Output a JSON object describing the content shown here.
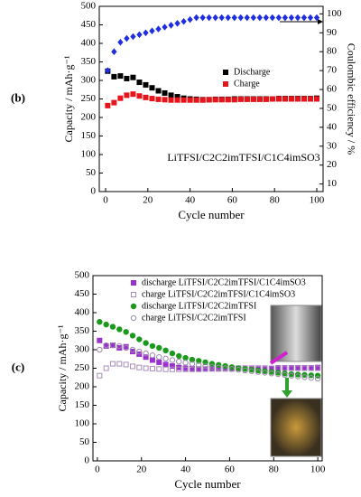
{
  "chart_data": [
    {
      "type": "scatter",
      "panel": "(b)",
      "annotation": "LiTFSI/C2C2imTFSI/C1C4imSO3",
      "x_label": "Cycle number",
      "y_label": "Capacity / mAh·g⁻¹",
      "y2_label": "Coulombic efficiency / %",
      "x": [
        1,
        4,
        7,
        10,
        13,
        16,
        19,
        22,
        25,
        28,
        31,
        34,
        37,
        40,
        43,
        46,
        49,
        52,
        55,
        58,
        61,
        64,
        67,
        70,
        73,
        76,
        79,
        82,
        85,
        88,
        91,
        94,
        97,
        100
      ],
      "xlim": [
        -3,
        103
      ],
      "xticks": [
        0,
        20,
        40,
        60,
        80,
        100
      ],
      "ylim": [
        0,
        500
      ],
      "yticks": [
        0,
        50,
        100,
        150,
        200,
        250,
        300,
        350,
        400,
        450,
        500
      ],
      "y2lim": [
        6,
        104
      ],
      "y2ticks": [
        10,
        20,
        30,
        40,
        50,
        60,
        70,
        80,
        90,
        100
      ],
      "legend": "right",
      "series": [
        {
          "name": "Discharge",
          "color": "#000000",
          "marker": "square",
          "filled": true,
          "values": [
            325,
            310,
            312,
            305,
            308,
            295,
            288,
            280,
            272,
            266,
            260,
            256,
            252,
            250,
            249,
            248,
            248,
            249,
            249,
            249,
            250,
            250,
            250,
            250,
            250,
            250,
            250,
            251,
            251,
            251,
            251,
            251,
            251,
            252
          ]
        },
        {
          "name": "Charge",
          "color": "#e8141b",
          "marker": "square",
          "filled": true,
          "values": [
            232,
            240,
            252,
            260,
            263,
            258,
            254,
            251,
            249,
            248,
            247,
            247,
            247,
            247,
            247,
            247,
            248,
            248,
            248,
            248,
            248,
            249,
            249,
            249,
            249,
            249,
            250,
            250,
            250,
            250,
            250,
            250,
            250,
            250
          ]
        },
        {
          "color": "#1f2ee0",
          "marker": "diamond",
          "filled": true,
          "axis": "y2",
          "values": [
            70,
            80,
            85,
            87,
            88,
            89,
            90,
            91,
            92,
            93,
            94,
            95,
            96,
            97,
            98,
            98,
            98,
            98,
            98,
            98,
            98,
            98,
            98,
            98,
            98,
            98,
            98,
            98,
            98,
            98,
            98,
            98,
            98,
            98
          ]
        }
      ]
    },
    {
      "type": "scatter",
      "panel": "(c)",
      "x_label": "Cycle number",
      "y_label": "Capacity / mAh·g⁻¹",
      "x": [
        1,
        4,
        7,
        10,
        13,
        16,
        19,
        22,
        25,
        28,
        31,
        34,
        37,
        40,
        43,
        46,
        49,
        52,
        55,
        58,
        61,
        64,
        67,
        70,
        73,
        76,
        79,
        82,
        85,
        88,
        91,
        94,
        97,
        100
      ],
      "xlim": [
        -2,
        102
      ],
      "xticks": [
        0,
        20,
        40,
        60,
        80,
        100
      ],
      "ylim": [
        0,
        500
      ],
      "yticks": [
        0,
        50,
        100,
        150,
        200,
        250,
        300,
        350,
        400,
        450,
        500
      ],
      "legend": "top-right",
      "series": [
        {
          "name": "discharge LiTFSI/C2C2imTFSI/C1C4imSO3",
          "color": "#9b30d0",
          "marker": "square",
          "filled": true,
          "values": [
            325,
            310,
            312,
            305,
            308,
            295,
            288,
            280,
            272,
            266,
            260,
            256,
            252,
            250,
            249,
            248,
            248,
            249,
            249,
            249,
            250,
            250,
            250,
            250,
            250,
            250,
            250,
            251,
            251,
            251,
            251,
            251,
            251,
            252
          ]
        },
        {
          "name": "charge LiTFSI/C2C2imTFSI/C1C4imSO3",
          "color": "#a88cb8",
          "marker": "square",
          "filled": false,
          "values": [
            230,
            250,
            262,
            262,
            260,
            255,
            252,
            250,
            249,
            248,
            247,
            247,
            247,
            247,
            247,
            247,
            248,
            248,
            248,
            248,
            248,
            249,
            249,
            249,
            249,
            249,
            250,
            250,
            250,
            250,
            250,
            250,
            250,
            250
          ]
        },
        {
          "name": "discharge LiTFSI/C2C2imTFSI",
          "color": "#1a9a1a",
          "marker": "circle",
          "filled": true,
          "values": [
            375,
            368,
            362,
            355,
            348,
            338,
            328,
            318,
            310,
            305,
            298,
            290,
            283,
            278,
            273,
            270,
            266,
            262,
            259,
            256,
            253,
            250,
            248,
            246,
            244,
            242,
            240,
            238,
            236,
            234,
            233,
            232,
            231,
            230
          ]
        },
        {
          "name": "charge LiTFSI/C2C2imTFSI",
          "color": "#9a8aa8",
          "marker": "circle",
          "filled": false,
          "values": [
            300,
            312,
            312,
            310,
            305,
            300,
            295,
            290,
            285,
            280,
            276,
            272,
            268,
            265,
            262,
            259,
            256,
            254,
            252,
            250,
            248,
            246,
            244,
            242,
            240,
            238,
            236,
            234,
            232,
            230,
            228,
            226,
            224,
            222
          ]
        }
      ]
    }
  ]
}
